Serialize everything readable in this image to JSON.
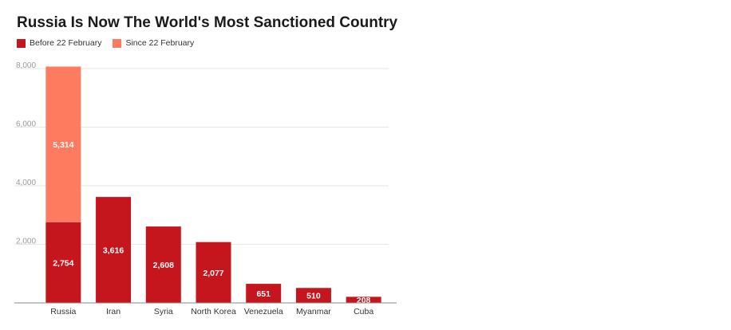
{
  "title": "Russia Is Now The World's Most Sanctioned Country",
  "legend": {
    "before": "Before 22 February",
    "since": "Since 22 February"
  },
  "colors": {
    "before": "#c4161c",
    "since": "#ff7b5f",
    "grid": "#e6e6e6",
    "axis": "#8a8a8a",
    "tick_text": "#9a9a9a",
    "label_text": "#ffffff"
  },
  "chart_data": {
    "type": "bar",
    "stacked": true,
    "categories": [
      "Russia",
      "Iran",
      "Syria",
      "North Korea",
      "Venezuela",
      "Myanmar",
      "Cuba"
    ],
    "series": [
      {
        "name": "Before 22 February",
        "values": [
          2754,
          3616,
          2608,
          2077,
          651,
          510,
          208
        ]
      },
      {
        "name": "Since 22 February",
        "values": [
          5314,
          0,
          0,
          0,
          0,
          0,
          0
        ]
      }
    ],
    "data_labels": [
      [
        "2,754",
        "3,616",
        "2,608",
        "2,077",
        "651",
        "510",
        "208"
      ],
      [
        "5,314",
        "",
        "",
        "",
        "",
        "",
        ""
      ]
    ],
    "yticks": [
      "2,000",
      "4,000",
      "6,000",
      "8,000"
    ],
    "ytick_values": [
      2000,
      4000,
      6000,
      8000
    ],
    "ylim": [
      0,
      8000
    ],
    "grid": true,
    "legend_position": "top-left"
  }
}
